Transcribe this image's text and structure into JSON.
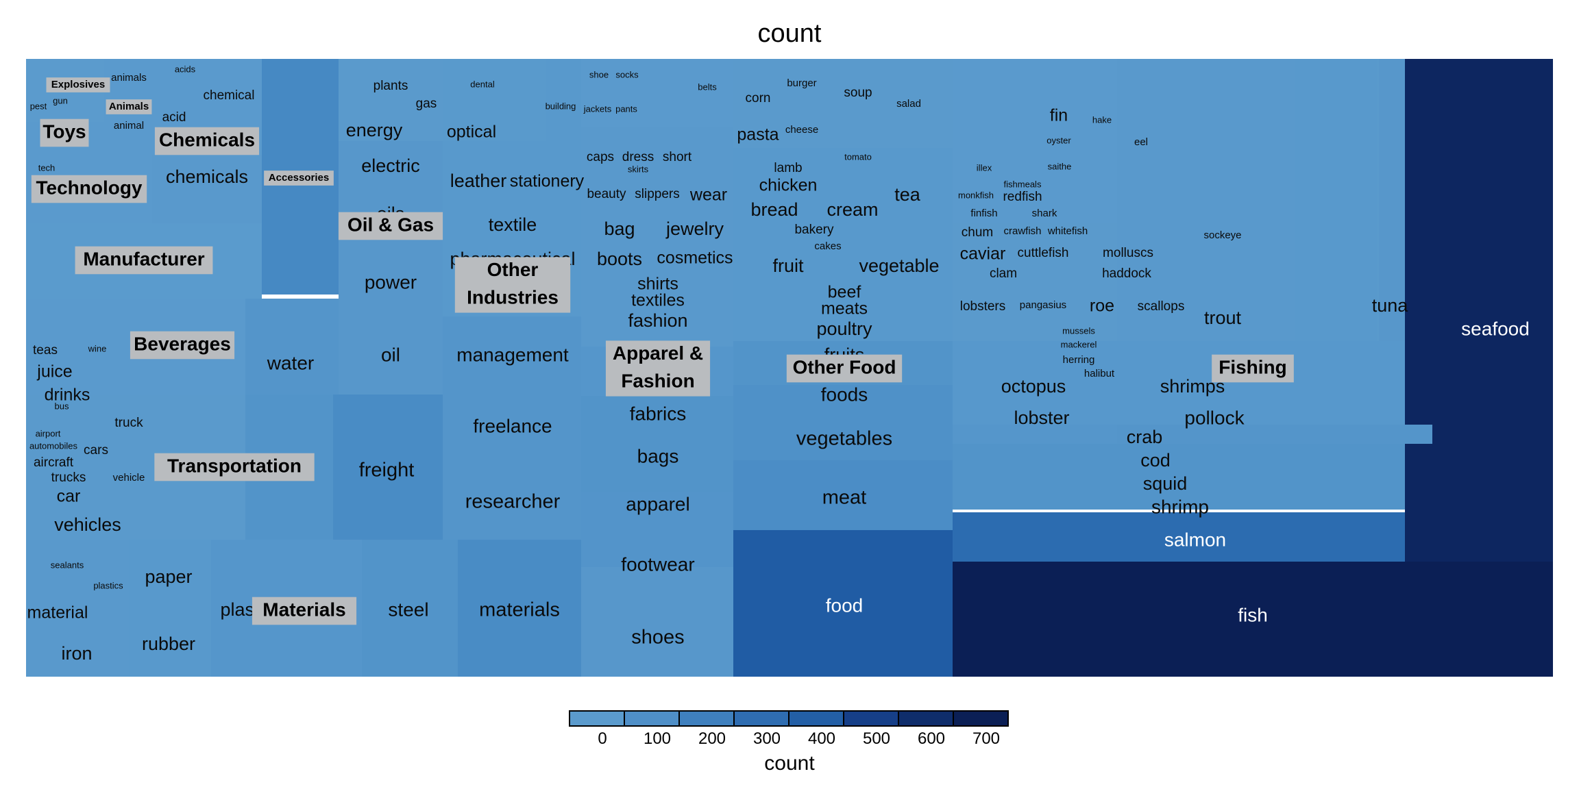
{
  "chart_data": {
    "type": "treemap",
    "title": "count",
    "legend": {
      "title": "count",
      "ticks": [
        0,
        100,
        200,
        300,
        400,
        500,
        600,
        700
      ],
      "colors": [
        "#5b9bcd",
        "#4f8fc7",
        "#3f80be",
        "#2f6db1",
        "#235fa6",
        "#163f88",
        "#0f2d6b",
        "#0b1f55"
      ]
    },
    "groups": [
      {
        "name": "Toys",
        "items": [
          {
            "label": "pest",
            "value": 2
          },
          {
            "label": "gun",
            "value": 2
          }
        ]
      },
      {
        "name": "Explosives",
        "items": []
      },
      {
        "name": "Animals",
        "items": [
          {
            "label": "animals",
            "value": 6
          },
          {
            "label": "animal",
            "value": 6
          }
        ]
      },
      {
        "name": "Chemicals",
        "items": [
          {
            "label": "acids",
            "value": 2
          },
          {
            "label": "acid",
            "value": 9
          },
          {
            "label": "chemical",
            "value": 10
          },
          {
            "label": "chemicals",
            "value": 30
          }
        ]
      },
      {
        "name": "Technology",
        "items": [
          {
            "label": "tech",
            "value": 3
          }
        ]
      },
      {
        "name": "Manufacturer",
        "items": []
      },
      {
        "name": "Accessories",
        "items": []
      },
      {
        "name": "Oil & Gas",
        "items": [
          {
            "label": "plants",
            "value": 8
          },
          {
            "label": "gas",
            "value": 9
          },
          {
            "label": "energy",
            "value": 20
          },
          {
            "label": "electric",
            "value": 22
          },
          {
            "label": "oils",
            "value": 22
          },
          {
            "label": "power",
            "value": 40
          },
          {
            "label": "oil",
            "value": 48
          }
        ]
      },
      {
        "name": "Other Industries",
        "items": [
          {
            "label": "dental",
            "value": 4
          },
          {
            "label": "building",
            "value": 4
          },
          {
            "label": "optical",
            "value": 18
          },
          {
            "label": "leather",
            "value": 20
          },
          {
            "label": "stationery",
            "value": 15
          },
          {
            "label": "textile",
            "value": 30
          },
          {
            "label": "pharmaceutical",
            "value": 30
          },
          {
            "label": "management",
            "value": 50
          },
          {
            "label": "freelance",
            "value": 80
          },
          {
            "label": "researcher",
            "value": 110
          }
        ]
      },
      {
        "name": "Apparel & Fashion",
        "items": [
          {
            "label": "shoe",
            "value": 4
          },
          {
            "label": "socks",
            "value": 4
          },
          {
            "label": "jackets",
            "value": 3
          },
          {
            "label": "pants",
            "value": 4
          },
          {
            "label": "belts",
            "value": 4
          },
          {
            "label": "caps",
            "value": 10
          },
          {
            "label": "dress",
            "value": 10
          },
          {
            "label": "short",
            "value": 10
          },
          {
            "label": "skirts",
            "value": 4
          },
          {
            "label": "beauty",
            "value": 10
          },
          {
            "label": "slippers",
            "value": 10
          },
          {
            "label": "wear",
            "value": 18
          },
          {
            "label": "bag",
            "value": 20
          },
          {
            "label": "jewelry",
            "value": 20
          },
          {
            "label": "boots",
            "value": 22
          },
          {
            "label": "cosmetics",
            "value": 15
          },
          {
            "label": "shirts",
            "value": 12
          },
          {
            "label": "textiles",
            "value": 12
          },
          {
            "label": "fashion",
            "value": 20
          },
          {
            "label": "fabrics",
            "value": 40
          },
          {
            "label": "bags",
            "value": 60
          },
          {
            "label": "apparel",
            "value": 70
          },
          {
            "label": "footwear",
            "value": 90
          },
          {
            "label": "shoes",
            "value": 100
          }
        ]
      },
      {
        "name": "Other Food",
        "items": [
          {
            "label": "corn",
            "value": 10
          },
          {
            "label": "burger",
            "value": 6
          },
          {
            "label": "soup",
            "value": 8
          },
          {
            "label": "salad",
            "value": 5
          },
          {
            "label": "pasta",
            "value": 15
          },
          {
            "label": "cheese",
            "value": 5
          },
          {
            "label": "tomato",
            "value": 4
          },
          {
            "label": "lamb",
            "value": 10
          },
          {
            "label": "chicken",
            "value": 12
          },
          {
            "label": "tea",
            "value": 20
          },
          {
            "label": "bread",
            "value": 20
          },
          {
            "label": "cream",
            "value": 22
          },
          {
            "label": "bakery",
            "value": 8
          },
          {
            "label": "cakes",
            "value": 6
          },
          {
            "label": "fruit",
            "value": 25
          },
          {
            "label": "vegetable",
            "value": 30
          },
          {
            "label": "beef",
            "value": 15
          },
          {
            "label": "meats",
            "value": 15
          },
          {
            "label": "poultry",
            "value": 30
          },
          {
            "label": "fruits",
            "value": 30
          },
          {
            "label": "foods",
            "value": 60
          },
          {
            "label": "vegetables",
            "value": 120
          },
          {
            "label": "meat",
            "value": 150
          },
          {
            "label": "food",
            "value": 400
          }
        ]
      },
      {
        "name": "Fishing",
        "items": [
          {
            "label": "fin",
            "value": 12
          },
          {
            "label": "hake",
            "value": 4
          },
          {
            "label": "oyster",
            "value": 4
          },
          {
            "label": "eel",
            "value": 6
          },
          {
            "label": "illex",
            "value": 4
          },
          {
            "label": "saithe",
            "value": 4
          },
          {
            "label": "fishmeals",
            "value": 4
          },
          {
            "label": "monkfish",
            "value": 4
          },
          {
            "label": "redfish",
            "value": 8
          },
          {
            "label": "finfish",
            "value": 6
          },
          {
            "label": "shark",
            "value": 6
          },
          {
            "label": "chum",
            "value": 10
          },
          {
            "label": "crawfish",
            "value": 5
          },
          {
            "label": "whitefish",
            "value": 5
          },
          {
            "label": "sockeye",
            "value": 5
          },
          {
            "label": "caviar",
            "value": 15
          },
          {
            "label": "cuttlefish",
            "value": 8
          },
          {
            "label": "molluscs",
            "value": 8
          },
          {
            "label": "clam",
            "value": 8
          },
          {
            "label": "haddock",
            "value": 8
          },
          {
            "label": "lobsters",
            "value": 10
          },
          {
            "label": "pangasius",
            "value": 6
          },
          {
            "label": "roe",
            "value": 12
          },
          {
            "label": "scallops",
            "value": 10
          },
          {
            "label": "tuna",
            "value": 30
          },
          {
            "label": "trout",
            "value": 20
          },
          {
            "label": "mussels",
            "value": 4
          },
          {
            "label": "mackerel",
            "value": 4
          },
          {
            "label": "herring",
            "value": 5
          },
          {
            "label": "halibut",
            "value": 5
          },
          {
            "label": "octopus",
            "value": 30
          },
          {
            "label": "shrimps",
            "value": 30
          },
          {
            "label": "lobster",
            "value": 30
          },
          {
            "label": "pollock",
            "value": 40
          },
          {
            "label": "crab",
            "value": 20
          },
          {
            "label": "cod",
            "value": 25
          },
          {
            "label": "squid",
            "value": 25
          },
          {
            "label": "shrimp",
            "value": 50
          },
          {
            "label": "salmon",
            "value": 300
          },
          {
            "label": "seafood",
            "value": 650
          },
          {
            "label": "fish",
            "value": 750
          }
        ]
      },
      {
        "name": "Beverages",
        "items": [
          {
            "label": "teas",
            "value": 8
          },
          {
            "label": "wine",
            "value": 4
          },
          {
            "label": "juice",
            "value": 12
          },
          {
            "label": "drinks",
            "value": 15
          },
          {
            "label": "water",
            "value": 50
          }
        ]
      },
      {
        "name": "Transportation",
        "items": [
          {
            "label": "bus",
            "value": 2
          },
          {
            "label": "truck",
            "value": 8
          },
          {
            "label": "airport",
            "value": 2
          },
          {
            "label": "automobiles",
            "value": 3
          },
          {
            "label": "cars",
            "value": 8
          },
          {
            "label": "aircraft",
            "value": 8
          },
          {
            "label": "trucks",
            "value": 10
          },
          {
            "label": "vehicle",
            "value": 6
          },
          {
            "label": "car",
            "value": 15
          },
          {
            "label": "vehicles",
            "value": 20
          },
          {
            "label": "freight",
            "value": 120
          }
        ]
      },
      {
        "name": "Materials",
        "items": [
          {
            "label": "sealants",
            "value": 3
          },
          {
            "label": "plastics",
            "value": 4
          },
          {
            "label": "paper",
            "value": 20
          },
          {
            "label": "material",
            "value": 15
          },
          {
            "label": "plast",
            "value": 22
          },
          {
            "label": "rubber",
            "value": 25
          },
          {
            "label": "iron",
            "value": 25
          },
          {
            "label": "steel",
            "value": 60
          },
          {
            "label": "materials",
            "value": 120
          }
        ]
      }
    ]
  }
}
